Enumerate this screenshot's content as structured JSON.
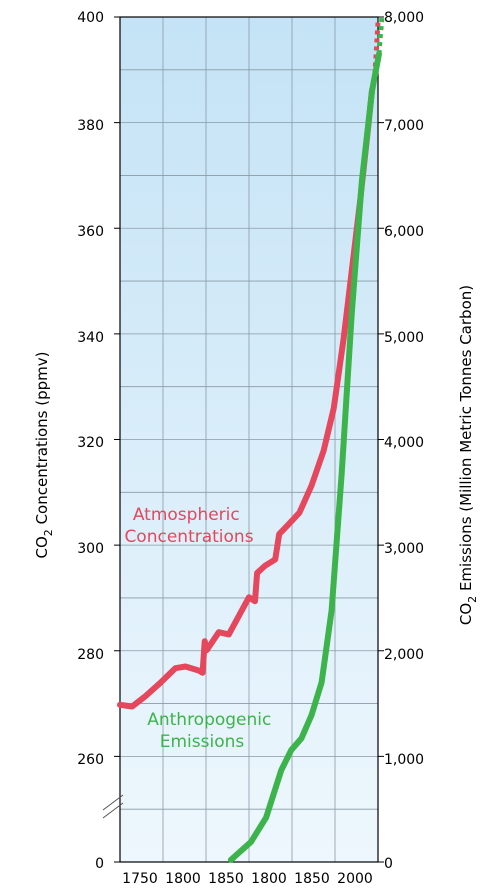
{
  "chart_data": {
    "type": "line",
    "xlabel": "",
    "x_ticks": [
      "1750",
      "1800",
      "1850",
      "1800",
      "1850",
      "2000"
    ],
    "y_left": {
      "label_prefix": "CO",
      "label_sub": "2",
      "label_suffix": " Concentrations (ppmv)",
      "ticks": [
        "400",
        "380",
        "360",
        "340",
        "320",
        "300",
        "280",
        "260",
        "0"
      ],
      "ylim": [
        250,
        400
      ],
      "axis_break": true
    },
    "y_right": {
      "label_prefix": "CO",
      "label_sub": "2",
      "label_suffix": " Emissions (Million Metric Tonnes Carbon)",
      "ticks": [
        "8,000",
        "7,000",
        "6,000",
        "5,000",
        "4,000",
        "3,000",
        "2,000",
        "1,000",
        "0"
      ],
      "ylim": [
        0,
        8000
      ]
    },
    "grid": true,
    "background": "light blue gradient",
    "series": [
      {
        "name": "Atmospheric Concentrations",
        "color": "#e5475c",
        "axis": "left",
        "points": [
          [
            1750,
            277.9
          ],
          [
            1762,
            277.6
          ],
          [
            1775,
            279.4
          ],
          [
            1790,
            281.8
          ],
          [
            1805,
            284.4
          ],
          [
            1815,
            284.7
          ],
          [
            1828,
            284.0
          ],
          [
            1832,
            283.6
          ],
          [
            1834,
            289.2
          ],
          [
            1836,
            287.6
          ],
          [
            1848,
            290.8
          ],
          [
            1858,
            290.4
          ],
          [
            1868,
            293.7
          ],
          [
            1878,
            297.0
          ],
          [
            1884,
            296.3
          ],
          [
            1886,
            301.3
          ],
          [
            1894,
            302.6
          ],
          [
            1904,
            303.7
          ],
          [
            1908,
            308.2
          ],
          [
            1916,
            309.7
          ],
          [
            1928,
            312.0
          ],
          [
            1940,
            316.8
          ],
          [
            1952,
            323.0
          ],
          [
            1962,
            330.5
          ],
          [
            1972,
            343.0
          ],
          [
            1980,
            355.0
          ],
          [
            1988,
            367.0
          ],
          [
            1996,
            380.0
          ],
          [
            2000,
            387.0
          ]
        ],
        "extension_points": [
          [
            2003,
            390.0
          ],
          [
            2006,
            399.0
          ]
        ]
      },
      {
        "name": "Anthropogenic Emissions",
        "color": "#3cb44b",
        "axis": "right",
        "points": [
          [
            1860,
            20
          ],
          [
            1880,
            190
          ],
          [
            1895,
            420
          ],
          [
            1910,
            870
          ],
          [
            1920,
            1060
          ],
          [
            1930,
            1170
          ],
          [
            1940,
            1390
          ],
          [
            1950,
            1700
          ],
          [
            1960,
            2380
          ],
          [
            1970,
            3680
          ],
          [
            1980,
            5200
          ],
          [
            1990,
            6450
          ],
          [
            2000,
            7300
          ],
          [
            2007,
            7650
          ]
        ],
        "extension_points": [
          [
            2008,
            7780
          ],
          [
            2010,
            8000
          ]
        ]
      }
    ],
    "annotations": [
      {
        "series": "Atmospheric Concentrations",
        "lines": [
          "Atmospheric",
          "Concentrations"
        ]
      },
      {
        "series": "Anthropogenic Emissions",
        "lines": [
          "Anthropogenic",
          "Emissions"
        ]
      }
    ]
  }
}
